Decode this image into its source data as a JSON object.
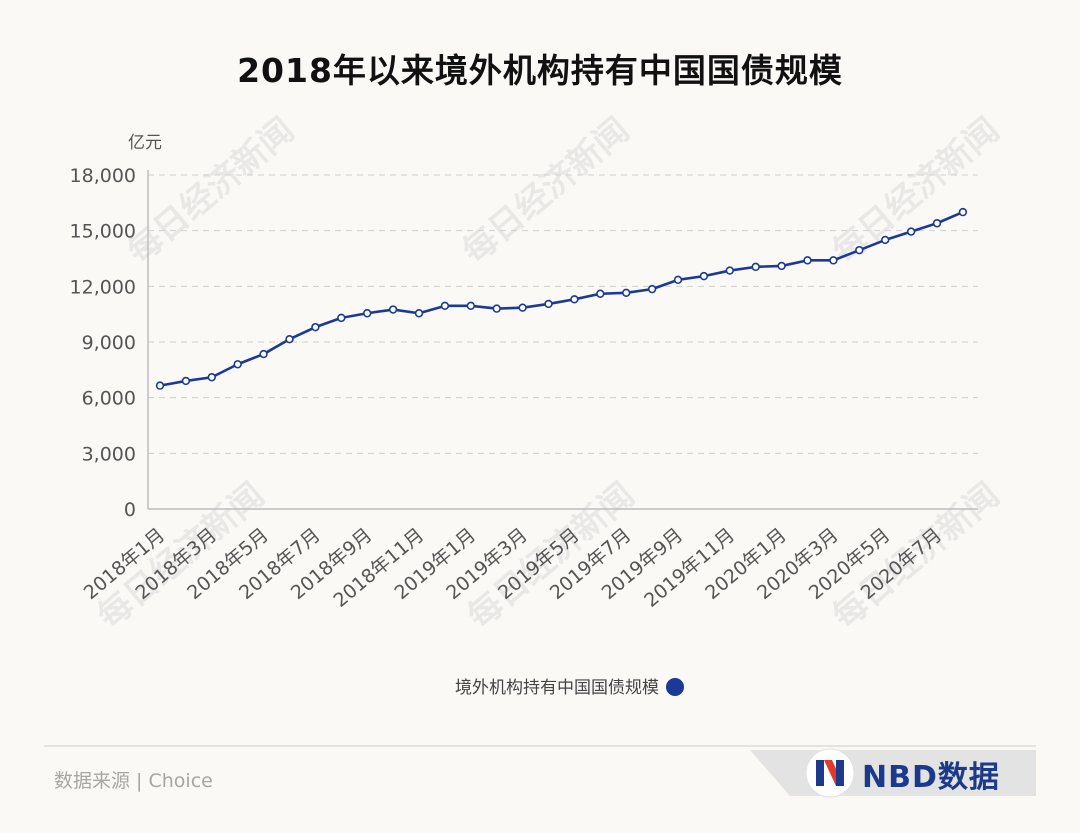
{
  "title": "2018年以来境外机构持有中国国债规模",
  "unit": "亿元",
  "legend": "境外机构持有中国国债规模",
  "source": "数据来源 | Choice",
  "brand": "NBD数据",
  "colors": {
    "line": "#1a3a96",
    "marker_fill": "#ffffff",
    "grid": "#cfcfcf",
    "legend_dot": "#1a3a96",
    "title": "#111111"
  },
  "chart_data": {
    "type": "line",
    "title": "2018年以来境外机构持有中国国债规模",
    "ylabel": "亿元",
    "ylim": [
      0,
      18000
    ],
    "yticks": [
      "0",
      "3,000",
      "6,000",
      "9,000",
      "12,000",
      "15,000",
      "18,000"
    ],
    "ytick_values": [
      0,
      3000,
      6000,
      9000,
      12000,
      15000,
      18000
    ],
    "grid": true,
    "legend_position": "bottom-center",
    "x": [
      "2018年1月",
      "2018年2月",
      "2018年3月",
      "2018年4月",
      "2018年5月",
      "2018年6月",
      "2018年7月",
      "2018年8月",
      "2018年9月",
      "2018年10月",
      "2018年11月",
      "2018年12月",
      "2019年1月",
      "2019年2月",
      "2019年3月",
      "2019年4月",
      "2019年5月",
      "2019年6月",
      "2019年7月",
      "2019年8月",
      "2019年9月",
      "2019年10月",
      "2019年11月",
      "2019年12月",
      "2020年1月",
      "2020年2月",
      "2020年3月",
      "2020年4月",
      "2020年5月",
      "2020年6月",
      "2020年7月",
      "2020年8月"
    ],
    "xtick_labels": [
      "2018年1月",
      "2018年3月",
      "2018年5月",
      "2018年7月",
      "2018年9月",
      "2018年11月",
      "2019年1月",
      "2019年3月",
      "2019年5月",
      "2019年7月",
      "2019年9月",
      "2019年11月",
      "2020年1月",
      "2020年3月",
      "2020年5月",
      "2020年7月"
    ],
    "series": [
      {
        "name": "境外机构持有中国国债规模",
        "values": [
          6650,
          6900,
          7100,
          7800,
          8350,
          9150,
          9800,
          10300,
          10550,
          10750,
          10550,
          10950,
          10950,
          10800,
          10850,
          11050,
          11300,
          11600,
          11650,
          11850,
          12350,
          12550,
          12850,
          13050,
          13100,
          13400,
          13400,
          13950,
          14500,
          14950,
          15400,
          16000
        ]
      }
    ]
  }
}
